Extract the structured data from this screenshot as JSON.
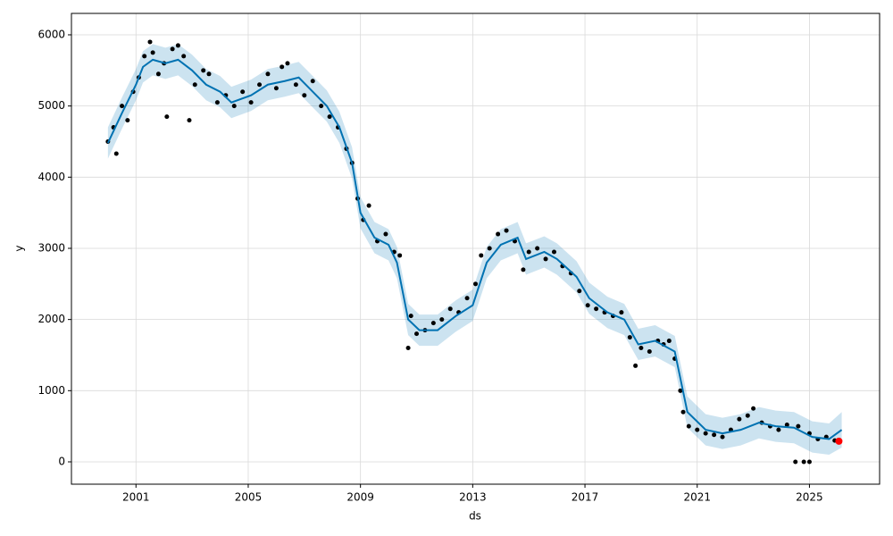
{
  "chart_data": {
    "type": "forecast",
    "xlabel": "ds",
    "ylabel": "y",
    "xlim": [
      1998.7,
      2027.5
    ],
    "ylim": [
      -314,
      6301
    ],
    "xticks": [
      2001,
      2005,
      2009,
      2013,
      2017,
      2021,
      2025
    ],
    "yticks": [
      0,
      1000,
      2000,
      3000,
      4000,
      5000,
      6000
    ],
    "grid": true,
    "forecast": {
      "color": "#0072B2",
      "x": [
        2000.0,
        2000.5,
        2001.0,
        2001.25,
        2001.6,
        2002.05,
        2002.5,
        2003.0,
        2003.5,
        2004.0,
        2004.4,
        2005.1,
        2005.7,
        2006.3,
        2006.8,
        2007.3,
        2007.8,
        2008.25,
        2008.7,
        2009.0,
        2009.5,
        2010.0,
        2010.3,
        2010.7,
        2011.1,
        2011.75,
        2012.4,
        2013.0,
        2013.5,
        2014.0,
        2014.6,
        2014.9,
        2015.55,
        2016.0,
        2016.7,
        2017.15,
        2017.8,
        2018.4,
        2018.9,
        2019.5,
        2020.2,
        2020.65,
        2021.3,
        2021.9,
        2022.55,
        2023.2,
        2023.8,
        2024.45,
        2025.1,
        2025.7,
        2026.15
      ],
      "values": [
        4480,
        4900,
        5300,
        5550,
        5650,
        5600,
        5650,
        5500,
        5300,
        5200,
        5050,
        5150,
        5300,
        5350,
        5400,
        5200,
        5000,
        4700,
        4200,
        3500,
        3150,
        3050,
        2800,
        2000,
        1850,
        1850,
        2050,
        2200,
        2800,
        3050,
        3150,
        2850,
        2950,
        2850,
        2600,
        2300,
        2100,
        2000,
        1650,
        1700,
        1550,
        700,
        450,
        400,
        450,
        550,
        500,
        480,
        350,
        320,
        450
      ],
      "lower": [
        4260,
        4680,
        5080,
        5330,
        5430,
        5380,
        5430,
        5280,
        5080,
        4980,
        4830,
        4930,
        5080,
        5130,
        5180,
        4980,
        4780,
        4480,
        3980,
        3280,
        2930,
        2830,
        2580,
        1780,
        1630,
        1630,
        1830,
        1980,
        2580,
        2830,
        2930,
        2630,
        2730,
        2630,
        2380,
        2080,
        1880,
        1780,
        1430,
        1480,
        1330,
        480,
        230,
        180,
        230,
        330,
        280,
        260,
        130,
        100,
        200
      ],
      "upper": [
        4700,
        5120,
        5520,
        5770,
        5870,
        5820,
        5870,
        5720,
        5520,
        5420,
        5270,
        5370,
        5520,
        5570,
        5620,
        5420,
        5220,
        4920,
        4420,
        3720,
        3370,
        3270,
        3020,
        2220,
        2070,
        2070,
        2270,
        2420,
        3020,
        3270,
        3370,
        3070,
        3170,
        3070,
        2820,
        2520,
        2320,
        2220,
        1870,
        1920,
        1770,
        920,
        670,
        620,
        670,
        770,
        720,
        700,
        570,
        540,
        700
      ]
    },
    "observed": {
      "color": "#000000",
      "x": [
        2000.0,
        2000.2,
        2000.3,
        2000.5,
        2000.7,
        2000.9,
        2001.1,
        2001.3,
        2001.5,
        2001.6,
        2001.8,
        2002.0,
        2002.1,
        2002.3,
        2002.5,
        2002.7,
        2002.9,
        2003.1,
        2003.4,
        2003.6,
        2003.9,
        2004.2,
        2004.5,
        2004.8,
        2005.1,
        2005.4,
        2005.7,
        2006.0,
        2006.2,
        2006.4,
        2006.7,
        2007.0,
        2007.3,
        2007.6,
        2007.9,
        2008.2,
        2008.5,
        2008.7,
        2008.9,
        2009.1,
        2009.3,
        2009.6,
        2009.9,
        2010.2,
        2010.4,
        2010.7,
        2010.8,
        2011.0,
        2011.3,
        2011.6,
        2011.9,
        2012.2,
        2012.5,
        2012.8,
        2013.1,
        2013.3,
        2013.6,
        2013.9,
        2014.2,
        2014.5,
        2014.8,
        2015.0,
        2015.3,
        2015.6,
        2015.9,
        2016.2,
        2016.5,
        2016.8,
        2017.1,
        2017.4,
        2017.7,
        2018.0,
        2018.3,
        2018.6,
        2018.8,
        2019.0,
        2019.3,
        2019.6,
        2019.8,
        2020.0,
        2020.2,
        2020.4,
        2020.5,
        2020.7,
        2021.0,
        2021.3,
        2021.6,
        2021.9,
        2022.2,
        2022.5,
        2022.8,
        2023.0,
        2023.3,
        2023.6,
        2023.9,
        2024.2,
        2024.5,
        2024.6,
        2024.8,
        2025.0,
        2025.0,
        2025.3,
        2025.6,
        2025.9
      ],
      "values": [
        4500,
        4700,
        4330,
        5000,
        4800,
        5200,
        5400,
        5700,
        5900,
        5750,
        5450,
        5600,
        4850,
        5800,
        5850,
        5700,
        4800,
        5300,
        5500,
        5450,
        5050,
        5150,
        5000,
        5200,
        5050,
        5300,
        5450,
        5250,
        5550,
        5600,
        5300,
        5150,
        5350,
        5000,
        4850,
        4700,
        4400,
        4200,
        3700,
        3400,
        3600,
        3100,
        3200,
        2950,
        2900,
        1600,
        2050,
        1800,
        1850,
        1950,
        2000,
        2150,
        2100,
        2300,
        2500,
        2900,
        3000,
        3200,
        3250,
        3100,
        2700,
        2950,
        3000,
        2850,
        2950,
        2750,
        2650,
        2400,
        2200,
        2150,
        2100,
        2050,
        2100,
        1750,
        1350,
        1600,
        1550,
        1700,
        1650,
        1700,
        1450,
        1000,
        700,
        500,
        450,
        400,
        380,
        350,
        450,
        600,
        650,
        750,
        550,
        500,
        450,
        520,
        0,
        500,
        0,
        0,
        400,
        320,
        350,
        300
      ]
    },
    "highlight": {
      "color": "#ff0000",
      "x": 2026.05,
      "value": 290
    }
  }
}
